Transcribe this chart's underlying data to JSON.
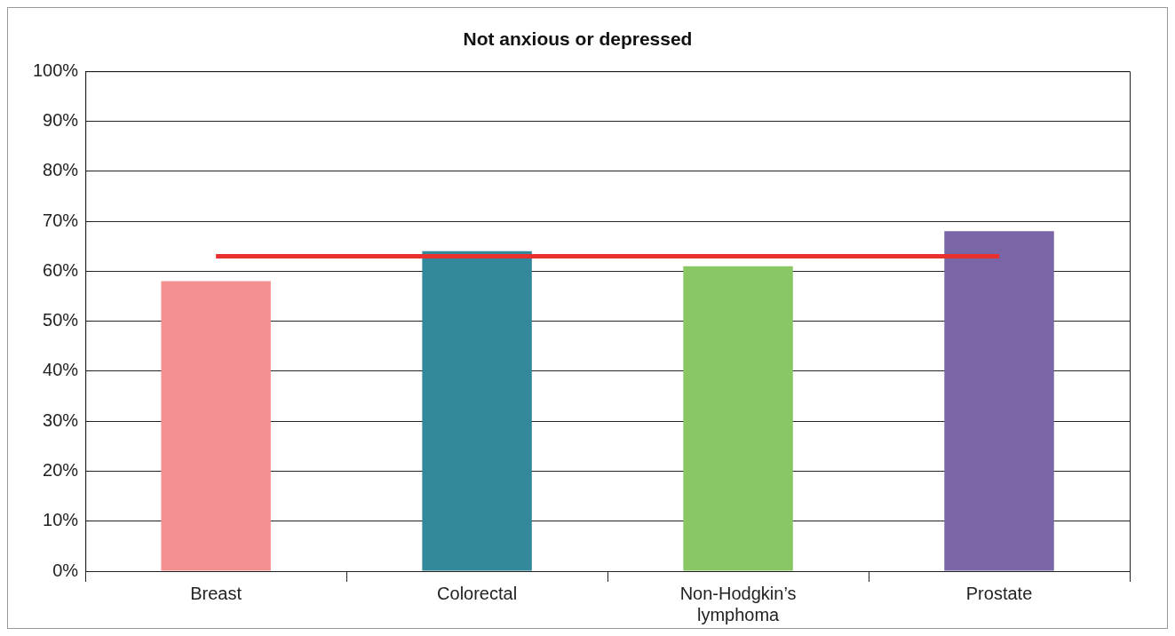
{
  "chart_data": {
    "type": "bar",
    "title": "Not anxious or depressed",
    "categories": [
      "Breast",
      "Colorectal",
      "Non-Hodgkin’s lymphoma",
      "Prostate"
    ],
    "values": [
      58,
      64,
      61,
      68
    ],
    "colors": [
      "#f39191",
      "#34889c",
      "#88c764",
      "#7a66a6"
    ],
    "ylim": [
      0,
      100
    ],
    "yticks": [
      {
        "value": 0,
        "label": "0%"
      },
      {
        "value": 10,
        "label": "10%"
      },
      {
        "value": 20,
        "label": "20%"
      },
      {
        "value": 30,
        "label": "30%"
      },
      {
        "value": 40,
        "label": "40%"
      },
      {
        "value": 50,
        "label": "50%"
      },
      {
        "value": 60,
        "label": "60%"
      },
      {
        "value": 70,
        "label": "70%"
      },
      {
        "value": 80,
        "label": "80%"
      },
      {
        "value": 90,
        "label": "90%"
      },
      {
        "value": 100,
        "label": "100%"
      }
    ],
    "grid": "y",
    "legend": false,
    "ref_lines": [
      {
        "axis": "y",
        "value": 63,
        "color": "#e8312f"
      }
    ]
  }
}
